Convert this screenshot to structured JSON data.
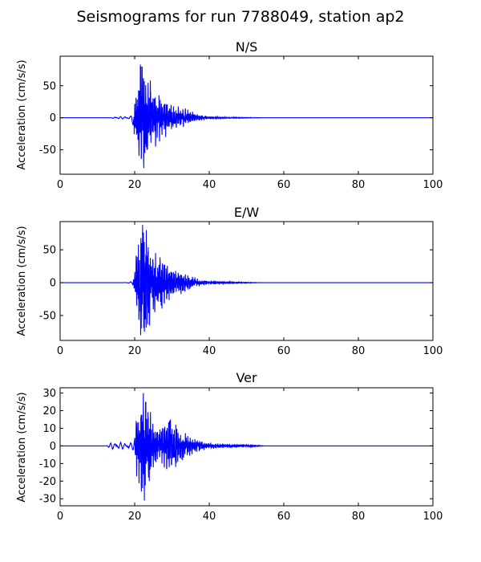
{
  "figure": {
    "suptitle": "Seismograms for run 7788049, station ap2"
  },
  "style": {
    "line_color": "#0000ff",
    "axis_color": "#000000",
    "background": "#ffffff"
  },
  "chart_data": [
    {
      "type": "line",
      "title": "N/S",
      "xlabel": "",
      "ylabel": "Acceleration (cm/s/s)",
      "xlim": [
        0,
        100
      ],
      "ylim": [
        -88,
        96
      ],
      "xticks": [
        0,
        20,
        40,
        60,
        80,
        100
      ],
      "yticks": [
        -50,
        0,
        50
      ],
      "grid": false,
      "series": [
        {
          "values": {
            "seed": 11,
            "onset": 19.8,
            "envelope": [
              [
                0,
                0
              ],
              [
                13.5,
                0
              ],
              [
                14.5,
                2
              ],
              [
                17,
                2
              ],
              [
                19,
                3
              ],
              [
                20.5,
                30
              ],
              [
                21.5,
                65
              ],
              [
                22.5,
                70
              ],
              [
                23.5,
                45
              ],
              [
                25,
                35
              ],
              [
                27,
                25
              ],
              [
                29,
                18
              ],
              [
                31,
                14
              ],
              [
                33,
                11
              ],
              [
                35,
                8
              ],
              [
                37,
                4
              ],
              [
                40,
                1.5
              ],
              [
                45,
                1
              ],
              [
                50,
                0.5
              ],
              [
                55,
                0
              ],
              [
                100,
                0
              ]
            ],
            "peaks": [
              [
                21.5,
                83
              ],
              [
                22.0,
                80
              ],
              [
                21.8,
                -62
              ],
              [
                22.7,
                -55
              ],
              [
                23.3,
                -50
              ],
              [
                24.2,
                58
              ],
              [
                25.6,
                -45
              ],
              [
                26.5,
                35
              ],
              [
                28.3,
                -30
              ]
            ]
          }
        }
      ]
    },
    {
      "type": "line",
      "title": "E/W",
      "xlabel": "",
      "ylabel": "Acceleration (cm/s/s)",
      "xlim": [
        0,
        100
      ],
      "ylim": [
        -88,
        93
      ],
      "xticks": [
        0,
        20,
        40,
        60,
        80,
        100
      ],
      "yticks": [
        -50,
        0,
        50
      ],
      "grid": false,
      "series": [
        {
          "values": {
            "seed": 23,
            "onset": 19.5,
            "envelope": [
              [
                0,
                0
              ],
              [
                17,
                0
              ],
              [
                19.4,
                2
              ],
              [
                20,
                15
              ],
              [
                21,
                55
              ],
              [
                22,
                75
              ],
              [
                23,
                70
              ],
              [
                24,
                45
              ],
              [
                26,
                32
              ],
              [
                28,
                26
              ],
              [
                30,
                20
              ],
              [
                32,
                15
              ],
              [
                34,
                10
              ],
              [
                36,
                6
              ],
              [
                38,
                3
              ],
              [
                40,
                2
              ],
              [
                43,
                1.5
              ],
              [
                46,
                1
              ],
              [
                50,
                0.5
              ],
              [
                55,
                0
              ],
              [
                100,
                0
              ]
            ],
            "peaks": [
              [
                22.1,
                88
              ],
              [
                21.6,
                -80
              ],
              [
                22.6,
                -75
              ],
              [
                23.1,
                80
              ],
              [
                24.0,
                -65
              ],
              [
                25.6,
                45
              ],
              [
                27.1,
                -35
              ]
            ]
          }
        }
      ]
    },
    {
      "type": "line",
      "title": "Ver",
      "xlabel": "",
      "ylabel": "Acceleration (cm/s/s)",
      "xlim": [
        0,
        100
      ],
      "ylim": [
        -34,
        33
      ],
      "xticks": [
        0,
        20,
        40,
        60,
        80,
        100
      ],
      "yticks": [
        -30,
        -20,
        -10,
        0,
        10,
        20,
        30
      ],
      "grid": false,
      "series": [
        {
          "values": {
            "seed": 37,
            "onset": 20.0,
            "envelope": [
              [
                0,
                0
              ],
              [
                12,
                0
              ],
              [
                13,
                1
              ],
              [
                14.5,
                2.5
              ],
              [
                16,
                2
              ],
              [
                18,
                2
              ],
              [
                19.5,
                2
              ],
              [
                20,
                6
              ],
              [
                21,
                18
              ],
              [
                22,
                24
              ],
              [
                23,
                22
              ],
              [
                24,
                15
              ],
              [
                25,
                11
              ],
              [
                26,
                9
              ],
              [
                27,
                8
              ],
              [
                29,
                12
              ],
              [
                31,
                10
              ],
              [
                33,
                7
              ],
              [
                35,
                4
              ],
              [
                37,
                2.5
              ],
              [
                40,
                1.2
              ],
              [
                45,
                0.8
              ],
              [
                50,
                0.6
              ],
              [
                53,
                0.4
              ],
              [
                55,
                0
              ],
              [
                100,
                0
              ]
            ],
            "peaks": [
              [
                22.3,
                30
              ],
              [
                22.6,
                -31
              ],
              [
                22.1,
                -24
              ],
              [
                23.0,
                25
              ],
              [
                23.9,
                -20
              ],
              [
                29.6,
                15
              ],
              [
                31.0,
                -12
              ]
            ]
          }
        }
      ]
    }
  ]
}
